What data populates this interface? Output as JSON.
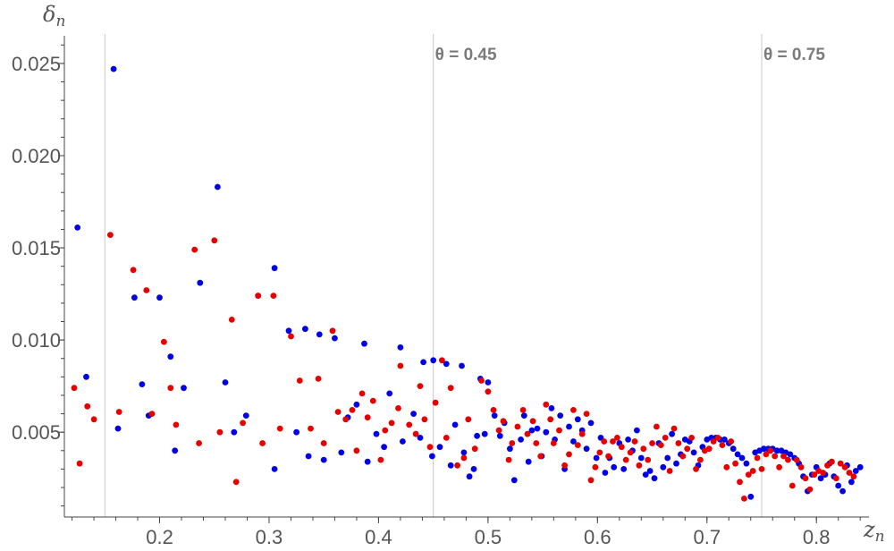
{
  "chart_data": {
    "type": "scatter",
    "xlabel": "z",
    "xlabel_sub": "n",
    "ylabel": "δ",
    "ylabel_sub": "n",
    "xlim": [
      0.113,
      0.848
    ],
    "ylim": [
      0.0004,
      0.0265
    ],
    "xticks": [
      {
        "v": 0.2,
        "label": "0.2"
      },
      {
        "v": 0.3,
        "label": "0.3"
      },
      {
        "v": 0.4,
        "label": "0.4"
      },
      {
        "v": 0.5,
        "label": "0.5"
      },
      {
        "v": 0.6,
        "label": "0.6"
      },
      {
        "v": 0.7,
        "label": "0.7"
      },
      {
        "v": 0.8,
        "label": "0.8"
      }
    ],
    "yticks": [
      {
        "v": 0.005,
        "label": "0.005"
      },
      {
        "v": 0.01,
        "label": "0.010"
      },
      {
        "v": 0.015,
        "label": "0.015"
      },
      {
        "v": 0.02,
        "label": "0.020"
      },
      {
        "v": 0.025,
        "label": "0.025"
      }
    ],
    "vertical_lines": [
      {
        "x": 0.15,
        "label": ""
      },
      {
        "x": 0.45,
        "label": "θ = 0.45"
      },
      {
        "x": 0.75,
        "label": "θ = 0.75"
      }
    ],
    "colors": {
      "series_blue": "#0000e6",
      "series_red": "#e60000",
      "axis": "#444444",
      "ref_line": "#c8c8c8"
    },
    "series": [
      {
        "color": "#0000e6",
        "points": [
          [
            0.125,
            0.0161
          ],
          [
            0.133,
            0.008
          ],
          [
            0.158,
            0.0247
          ],
          [
            0.162,
            0.0052
          ],
          [
            0.177,
            0.0123
          ],
          [
            0.184,
            0.0076
          ],
          [
            0.19,
            0.0059
          ],
          [
            0.2,
            0.0123
          ],
          [
            0.21,
            0.0091
          ],
          [
            0.214,
            0.004
          ],
          [
            0.222,
            0.0074
          ],
          [
            0.237,
            0.0131
          ],
          [
            0.253,
            0.0183
          ],
          [
            0.26,
            0.0077
          ],
          [
            0.268,
            0.005
          ],
          [
            0.279,
            0.0059
          ],
          [
            0.29,
            0.0124
          ],
          [
            0.305,
            0.0139
          ],
          [
            0.305,
            0.003
          ],
          [
            0.318,
            0.0105
          ],
          [
            0.325,
            0.005
          ],
          [
            0.333,
            0.0106
          ],
          [
            0.336,
            0.0037
          ],
          [
            0.346,
            0.0103
          ],
          [
            0.35,
            0.0035
          ],
          [
            0.36,
            0.0101
          ],
          [
            0.366,
            0.0039
          ],
          [
            0.372,
            0.0058
          ],
          [
            0.38,
            0.0065
          ],
          [
            0.387,
            0.0098
          ],
          [
            0.39,
            0.0034
          ],
          [
            0.398,
            0.0049
          ],
          [
            0.405,
            0.0042
          ],
          [
            0.41,
            0.0071
          ],
          [
            0.42,
            0.0096
          ],
          [
            0.422,
            0.0045
          ],
          [
            0.432,
            0.006
          ],
          [
            0.438,
            0.0047
          ],
          [
            0.441,
            0.0088
          ],
          [
            0.449,
            0.0037
          ],
          [
            0.45,
            0.0089
          ],
          [
            0.456,
            0.0042
          ],
          [
            0.462,
            0.0087
          ],
          [
            0.466,
            0.0032
          ],
          [
            0.47,
            0.0054
          ],
          [
            0.476,
            0.0086
          ],
          [
            0.478,
            0.0039
          ],
          [
            0.483,
            0.0026
          ],
          [
            0.487,
            0.003
          ],
          [
            0.49,
            0.0048
          ],
          [
            0.493,
            0.0079
          ],
          [
            0.497,
            0.0049
          ],
          [
            0.5,
            0.0077
          ],
          [
            0.506,
            0.0059
          ],
          [
            0.511,
            0.0048
          ],
          [
            0.515,
            0.0055
          ],
          [
            0.52,
            0.0041
          ],
          [
            0.524,
            0.0024
          ],
          [
            0.53,
            0.0046
          ],
          [
            0.533,
            0.0059
          ],
          [
            0.537,
            0.0034
          ],
          [
            0.54,
            0.0051
          ],
          [
            0.545,
            0.0052
          ],
          [
            0.549,
            0.0037
          ],
          [
            0.553,
            0.005
          ],
          [
            0.558,
            0.0063
          ],
          [
            0.561,
            0.0046
          ],
          [
            0.566,
            0.0059
          ],
          [
            0.57,
            0.003
          ],
          [
            0.574,
            0.0053
          ],
          [
            0.578,
            0.0045
          ],
          [
            0.582,
            0.0057
          ],
          [
            0.586,
            0.0051
          ],
          [
            0.59,
            0.0041
          ],
          [
            0.594,
            0.0055
          ],
          [
            0.599,
            0.0036
          ],
          [
            0.603,
            0.0047
          ],
          [
            0.607,
            0.0028
          ],
          [
            0.611,
            0.0036
          ],
          [
            0.615,
            0.0031
          ],
          [
            0.62,
            0.0044
          ],
          [
            0.624,
            0.003
          ],
          [
            0.628,
            0.0046
          ],
          [
            0.632,
            0.004
          ],
          [
            0.636,
            0.0051
          ],
          [
            0.64,
            0.0036
          ],
          [
            0.644,
            0.0027
          ],
          [
            0.648,
            0.0029
          ],
          [
            0.652,
            0.0025
          ],
          [
            0.656,
            0.0044
          ],
          [
            0.66,
            0.0031
          ],
          [
            0.664,
            0.0036
          ],
          [
            0.668,
            0.0049
          ],
          [
            0.672,
            0.0033
          ],
          [
            0.676,
            0.0038
          ],
          [
            0.68,
            0.0046
          ],
          [
            0.684,
            0.0045
          ],
          [
            0.688,
            0.0039
          ],
          [
            0.692,
            0.0032
          ],
          [
            0.696,
            0.0042
          ],
          [
            0.7,
            0.0046
          ],
          [
            0.704,
            0.0047
          ],
          [
            0.708,
            0.0047
          ],
          [
            0.712,
            0.0046
          ],
          [
            0.716,
            0.0046
          ],
          [
            0.72,
            0.0044
          ],
          [
            0.724,
            0.0041
          ],
          [
            0.728,
            0.0038
          ],
          [
            0.732,
            0.0036
          ],
          [
            0.736,
            0.0033
          ],
          [
            0.74,
            0.0015
          ],
          [
            0.744,
            0.0039
          ],
          [
            0.748,
            0.004
          ],
          [
            0.752,
            0.0041
          ],
          [
            0.756,
            0.0041
          ],
          [
            0.76,
            0.0041
          ],
          [
            0.764,
            0.004
          ],
          [
            0.768,
            0.004
          ],
          [
            0.772,
            0.0039
          ],
          [
            0.776,
            0.0038
          ],
          [
            0.78,
            0.0036
          ],
          [
            0.784,
            0.0033
          ],
          [
            0.788,
            0.0026
          ],
          [
            0.792,
            0.0018
          ],
          [
            0.796,
            0.0027
          ],
          [
            0.8,
            0.0031
          ],
          [
            0.804,
            0.0025
          ],
          [
            0.808,
            0.0027
          ],
          [
            0.812,
            0.0033
          ],
          [
            0.816,
            0.0026
          ],
          [
            0.82,
            0.0021
          ],
          [
            0.824,
            0.0018
          ],
          [
            0.828,
            0.0032
          ],
          [
            0.832,
            0.0023
          ],
          [
            0.836,
            0.0029
          ],
          [
            0.84,
            0.0031
          ]
        ]
      },
      {
        "color": "#e60000",
        "points": [
          [
            0.122,
            0.0074
          ],
          [
            0.127,
            0.0033
          ],
          [
            0.134,
            0.0064
          ],
          [
            0.14,
            0.0057
          ],
          [
            0.155,
            0.0157
          ],
          [
            0.163,
            0.0061
          ],
          [
            0.176,
            0.0138
          ],
          [
            0.188,
            0.0127
          ],
          [
            0.193,
            0.006
          ],
          [
            0.204,
            0.0099
          ],
          [
            0.21,
            0.0074
          ],
          [
            0.215,
            0.0054
          ],
          [
            0.232,
            0.0149
          ],
          [
            0.236,
            0.0044
          ],
          [
            0.25,
            0.0154
          ],
          [
            0.255,
            0.005
          ],
          [
            0.266,
            0.0111
          ],
          [
            0.27,
            0.0023
          ],
          [
            0.276,
            0.0055
          ],
          [
            0.29,
            0.0124
          ],
          [
            0.294,
            0.0044
          ],
          [
            0.304,
            0.0124
          ],
          [
            0.31,
            0.0052
          ],
          [
            0.32,
            0.0102
          ],
          [
            0.328,
            0.0078
          ],
          [
            0.338,
            0.0052
          ],
          [
            0.345,
            0.0079
          ],
          [
            0.35,
            0.0044
          ],
          [
            0.358,
            0.0105
          ],
          [
            0.363,
            0.0061
          ],
          [
            0.37,
            0.0057
          ],
          [
            0.376,
            0.0062
          ],
          [
            0.38,
            0.004
          ],
          [
            0.385,
            0.0071
          ],
          [
            0.39,
            0.0058
          ],
          [
            0.395,
            0.0067
          ],
          [
            0.402,
            0.0035
          ],
          [
            0.406,
            0.0051
          ],
          [
            0.412,
            0.0055
          ],
          [
            0.418,
            0.0063
          ],
          [
            0.42,
            0.0086
          ],
          [
            0.428,
            0.0054
          ],
          [
            0.434,
            0.0049
          ],
          [
            0.438,
            0.0075
          ],
          [
            0.442,
            0.0057
          ],
          [
            0.447,
            0.0042
          ],
          [
            0.452,
            0.0066
          ],
          [
            0.458,
            0.0089
          ],
          [
            0.462,
            0.0047
          ],
          [
            0.466,
            0.0074
          ],
          [
            0.472,
            0.0032
          ],
          [
            0.478,
            0.0036
          ],
          [
            0.482,
            0.0057
          ],
          [
            0.488,
            0.0041
          ],
          [
            0.494,
            0.0078
          ],
          [
            0.5,
            0.0072
          ],
          [
            0.505,
            0.0062
          ],
          [
            0.51,
            0.0051
          ],
          [
            0.514,
            0.0056
          ],
          [
            0.519,
            0.0035
          ],
          [
            0.522,
            0.0044
          ],
          [
            0.527,
            0.0053
          ],
          [
            0.532,
            0.0062
          ],
          [
            0.536,
            0.0049
          ],
          [
            0.541,
            0.0056
          ],
          [
            0.544,
            0.0044
          ],
          [
            0.548,
            0.0037
          ],
          [
            0.553,
            0.0065
          ],
          [
            0.557,
            0.0057
          ],
          [
            0.56,
            0.0044
          ],
          [
            0.565,
            0.0051
          ],
          [
            0.57,
            0.0032
          ],
          [
            0.574,
            0.0038
          ],
          [
            0.578,
            0.0062
          ],
          [
            0.582,
            0.0043
          ],
          [
            0.586,
            0.0049
          ],
          [
            0.59,
            0.006
          ],
          [
            0.594,
            0.0024
          ],
          [
            0.598,
            0.0031
          ],
          [
            0.602,
            0.0039
          ],
          [
            0.606,
            0.0045
          ],
          [
            0.61,
            0.0037
          ],
          [
            0.614,
            0.0045
          ],
          [
            0.618,
            0.0047
          ],
          [
            0.622,
            0.0042
          ],
          [
            0.626,
            0.0035
          ],
          [
            0.63,
            0.0039
          ],
          [
            0.634,
            0.0045
          ],
          [
            0.638,
            0.0032
          ],
          [
            0.642,
            0.0041
          ],
          [
            0.646,
            0.0035
          ],
          [
            0.65,
            0.0044
          ],
          [
            0.654,
            0.0053
          ],
          [
            0.658,
            0.0043
          ],
          [
            0.662,
            0.0047
          ],
          [
            0.666,
            0.0029
          ],
          [
            0.67,
            0.0052
          ],
          [
            0.674,
            0.0044
          ],
          [
            0.678,
            0.0037
          ],
          [
            0.682,
            0.0041
          ],
          [
            0.686,
            0.0047
          ],
          [
            0.69,
            0.003
          ],
          [
            0.694,
            0.0035
          ],
          [
            0.698,
            0.004
          ],
          [
            0.702,
            0.0041
          ],
          [
            0.706,
            0.0045
          ],
          [
            0.71,
            0.0047
          ],
          [
            0.714,
            0.0043
          ],
          [
            0.718,
            0.0031
          ],
          [
            0.722,
            0.0045
          ],
          [
            0.726,
            0.0033
          ],
          [
            0.73,
            0.0023
          ],
          [
            0.734,
            0.0014
          ],
          [
            0.738,
            0.0027
          ],
          [
            0.742,
            0.0029
          ],
          [
            0.746,
            0.0036
          ],
          [
            0.75,
            0.003
          ],
          [
            0.754,
            0.0038
          ],
          [
            0.758,
            0.004
          ],
          [
            0.762,
            0.0037
          ],
          [
            0.766,
            0.0031
          ],
          [
            0.77,
            0.0037
          ],
          [
            0.774,
            0.0035
          ],
          [
            0.778,
            0.0021
          ],
          [
            0.782,
            0.0035
          ],
          [
            0.786,
            0.0031
          ],
          [
            0.79,
            0.0025
          ],
          [
            0.794,
            0.0019
          ],
          [
            0.798,
            0.0027
          ],
          [
            0.802,
            0.0029
          ],
          [
            0.806,
            0.0028
          ],
          [
            0.81,
            0.0032
          ],
          [
            0.814,
            0.0034
          ],
          [
            0.818,
            0.0025
          ],
          [
            0.822,
            0.0033
          ],
          [
            0.826,
            0.0031
          ],
          [
            0.83,
            0.0028
          ],
          [
            0.834,
            0.0026
          ]
        ]
      }
    ]
  }
}
